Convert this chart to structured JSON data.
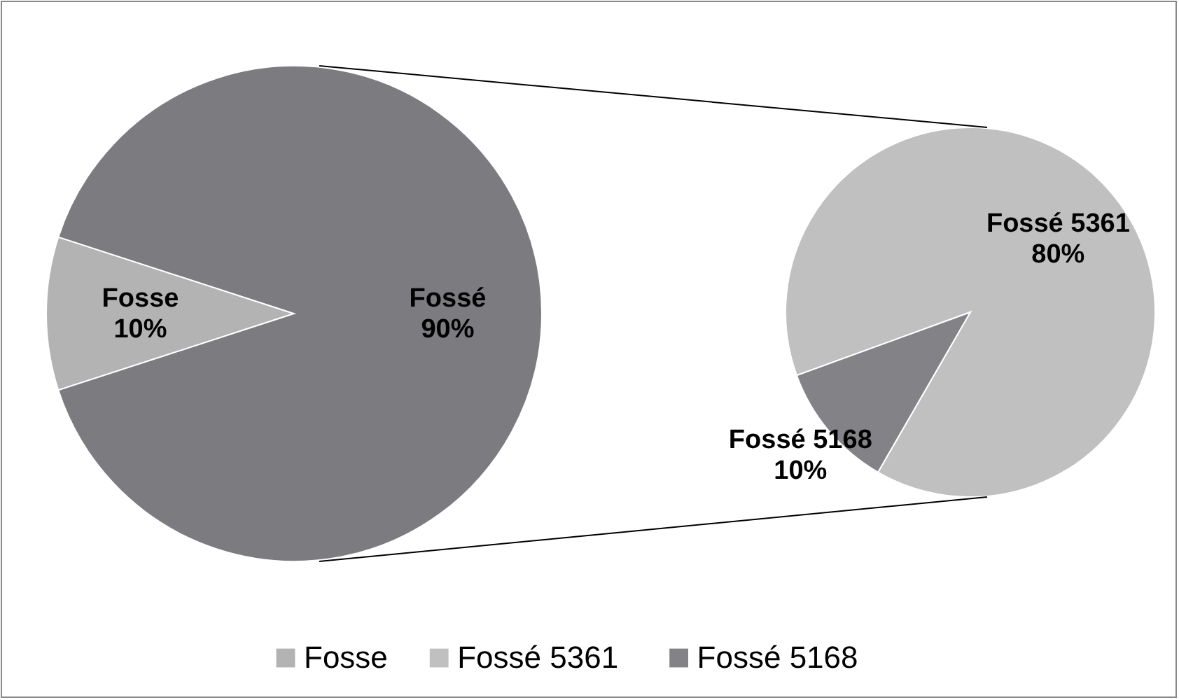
{
  "chart_data": [
    {
      "type": "pie",
      "categories": [
        "Fosse",
        "Fossé"
      ],
      "values": [
        10,
        90
      ],
      "colors": [
        "#b3b3b3",
        "#7c7b80"
      ],
      "value_labels": [
        "10%",
        "90%"
      ],
      "legend": "bottom"
    },
    {
      "type": "pie",
      "categories": [
        "Fossé 5361",
        "Fossé 5168"
      ],
      "values": [
        80,
        10
      ],
      "colors": [
        "#c0c0c0",
        "#838286"
      ],
      "value_labels": [
        "80%",
        "10%"
      ],
      "legend": "bottom"
    }
  ]
}
